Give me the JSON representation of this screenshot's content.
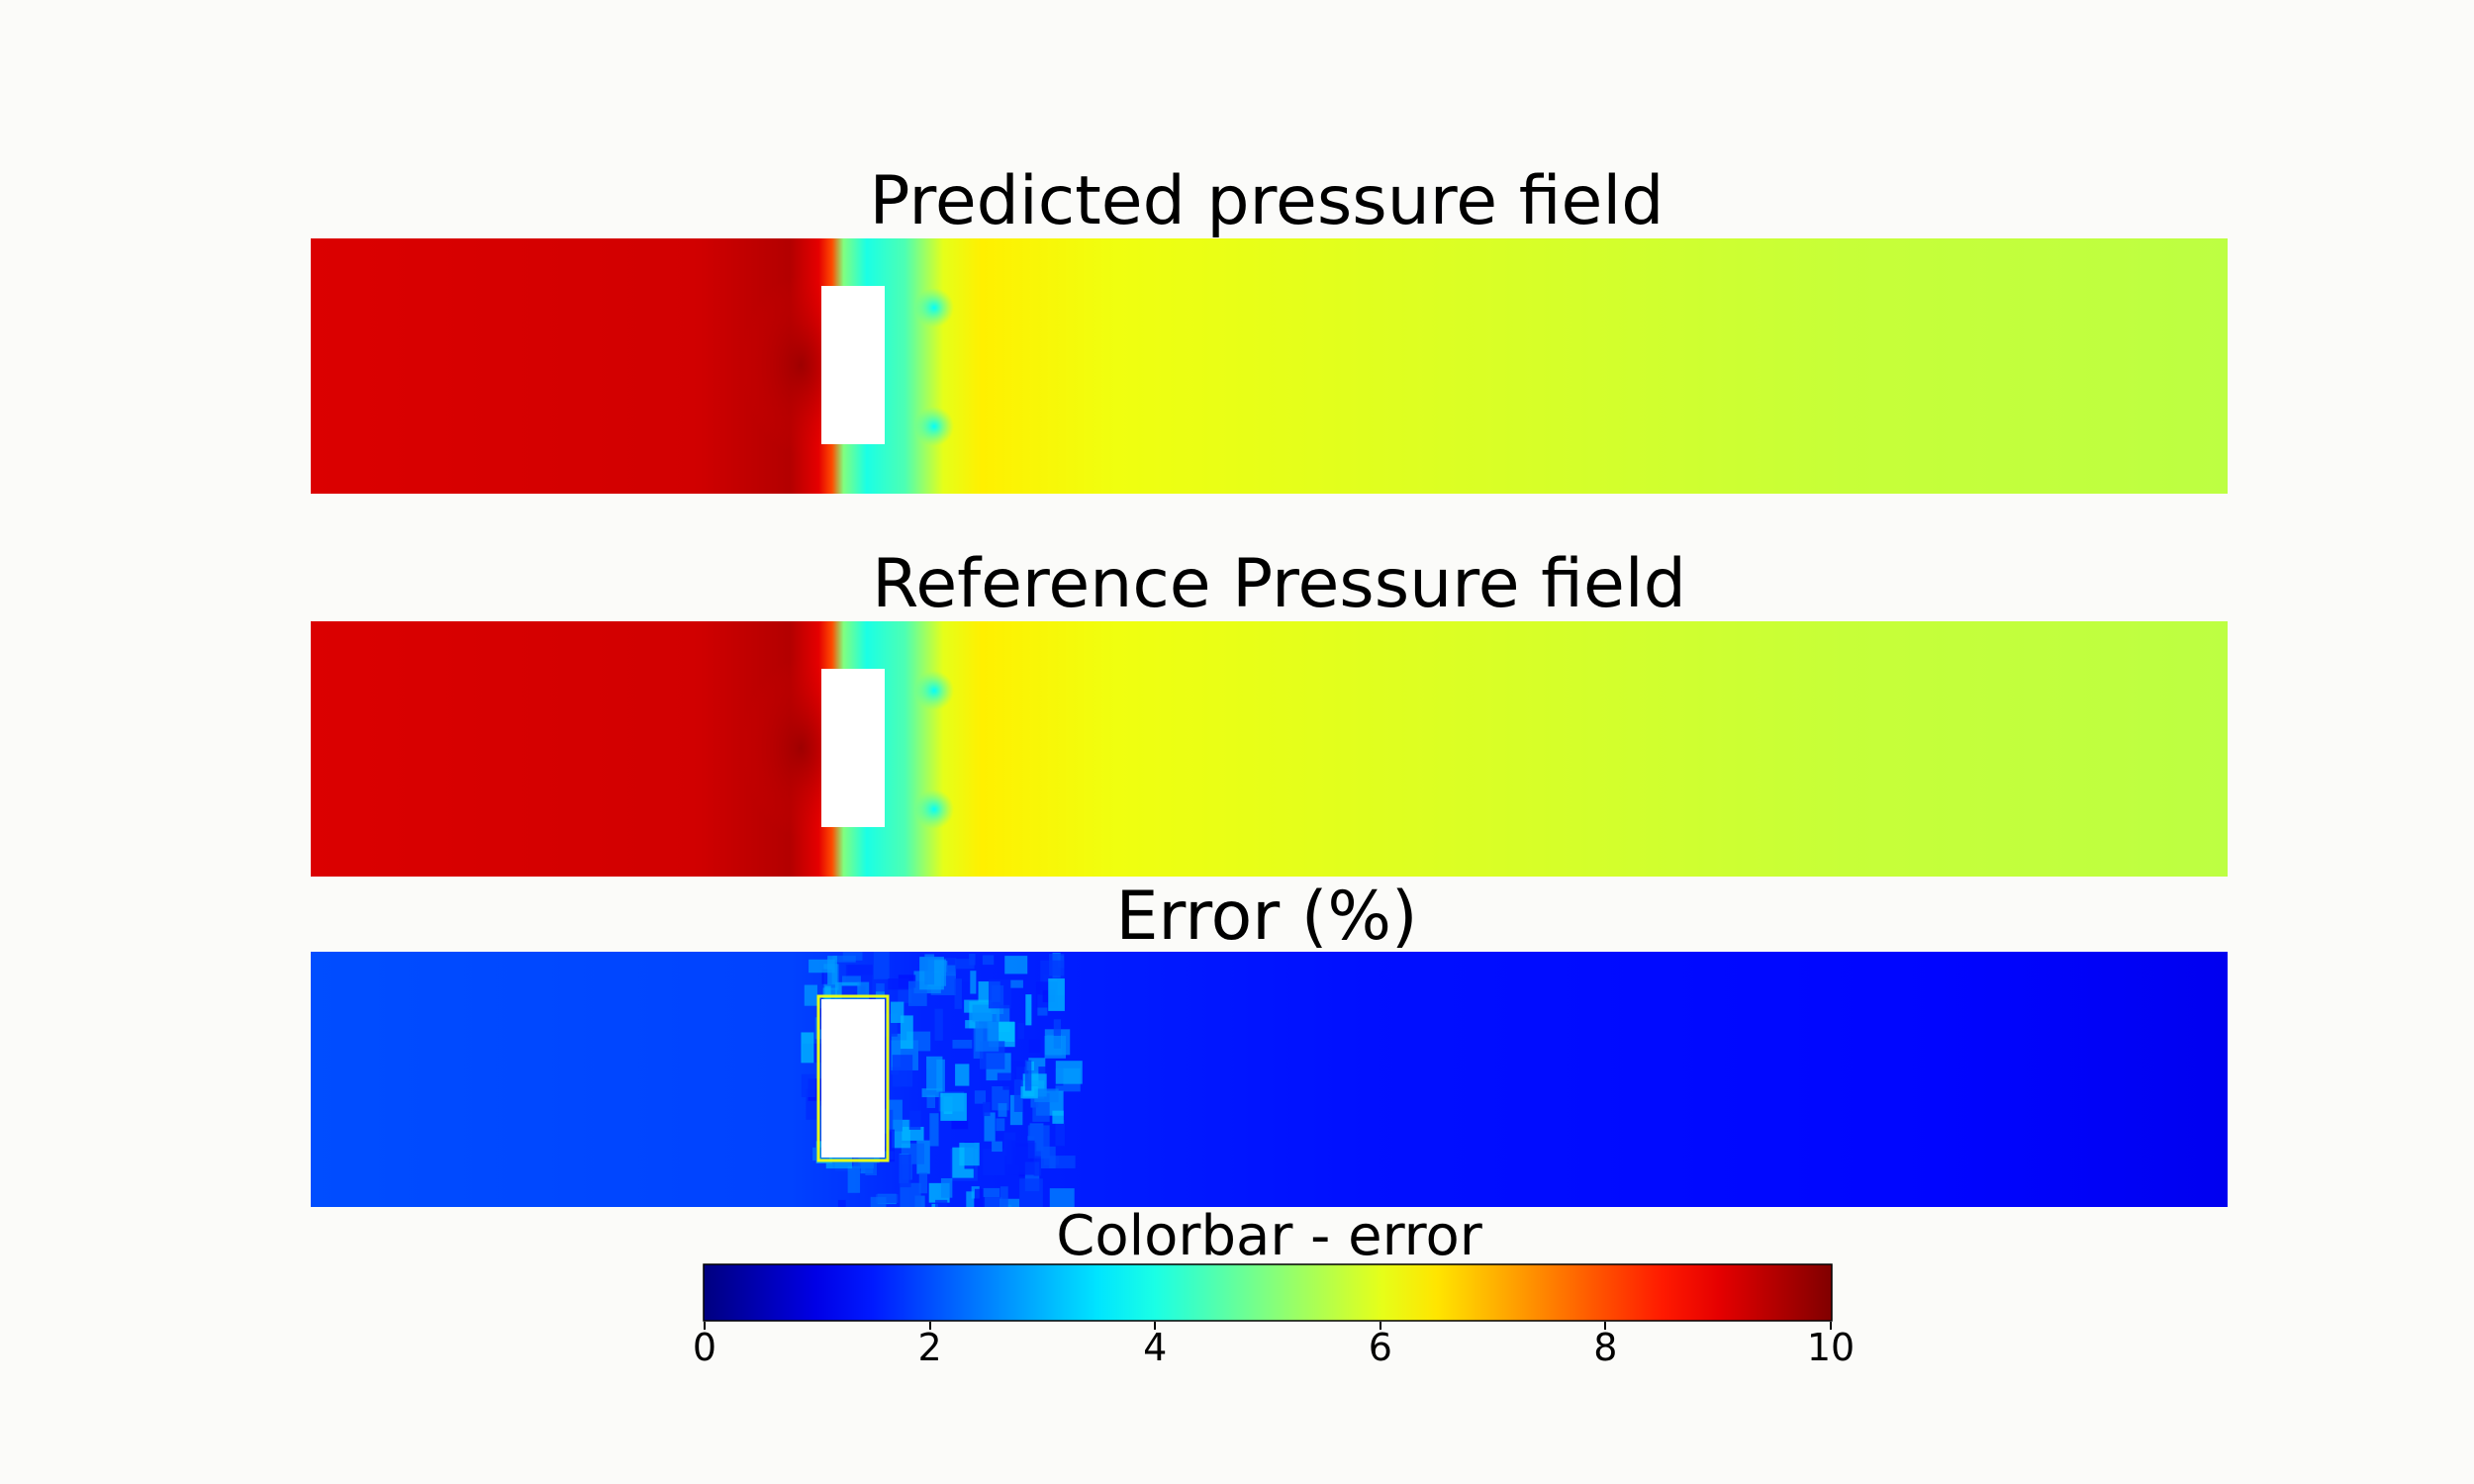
{
  "panels": [
    {
      "title": "Predicted pressure field",
      "field": "pressure",
      "bias": 0.0
    },
    {
      "title": "Reference Pressure field",
      "field": "pressure",
      "bias": 0.0
    },
    {
      "title": "Error (%)",
      "field": "error"
    }
  ],
  "colorbar": {
    "title": "Colorbar - error",
    "colormap": "jet",
    "range": [
      0,
      10
    ],
    "ticks": [
      "0",
      "2",
      "4",
      "6",
      "8",
      "10"
    ]
  },
  "chart_data": {
    "type": "heatmap",
    "colormap": "jet",
    "colorbar_range": [
      0,
      10
    ],
    "colorbar_ticks": [
      0,
      2,
      4,
      6,
      8,
      10
    ],
    "panels": [
      "Predicted pressure field",
      "Reference Pressure field",
      "Error (%)"
    ]
  }
}
